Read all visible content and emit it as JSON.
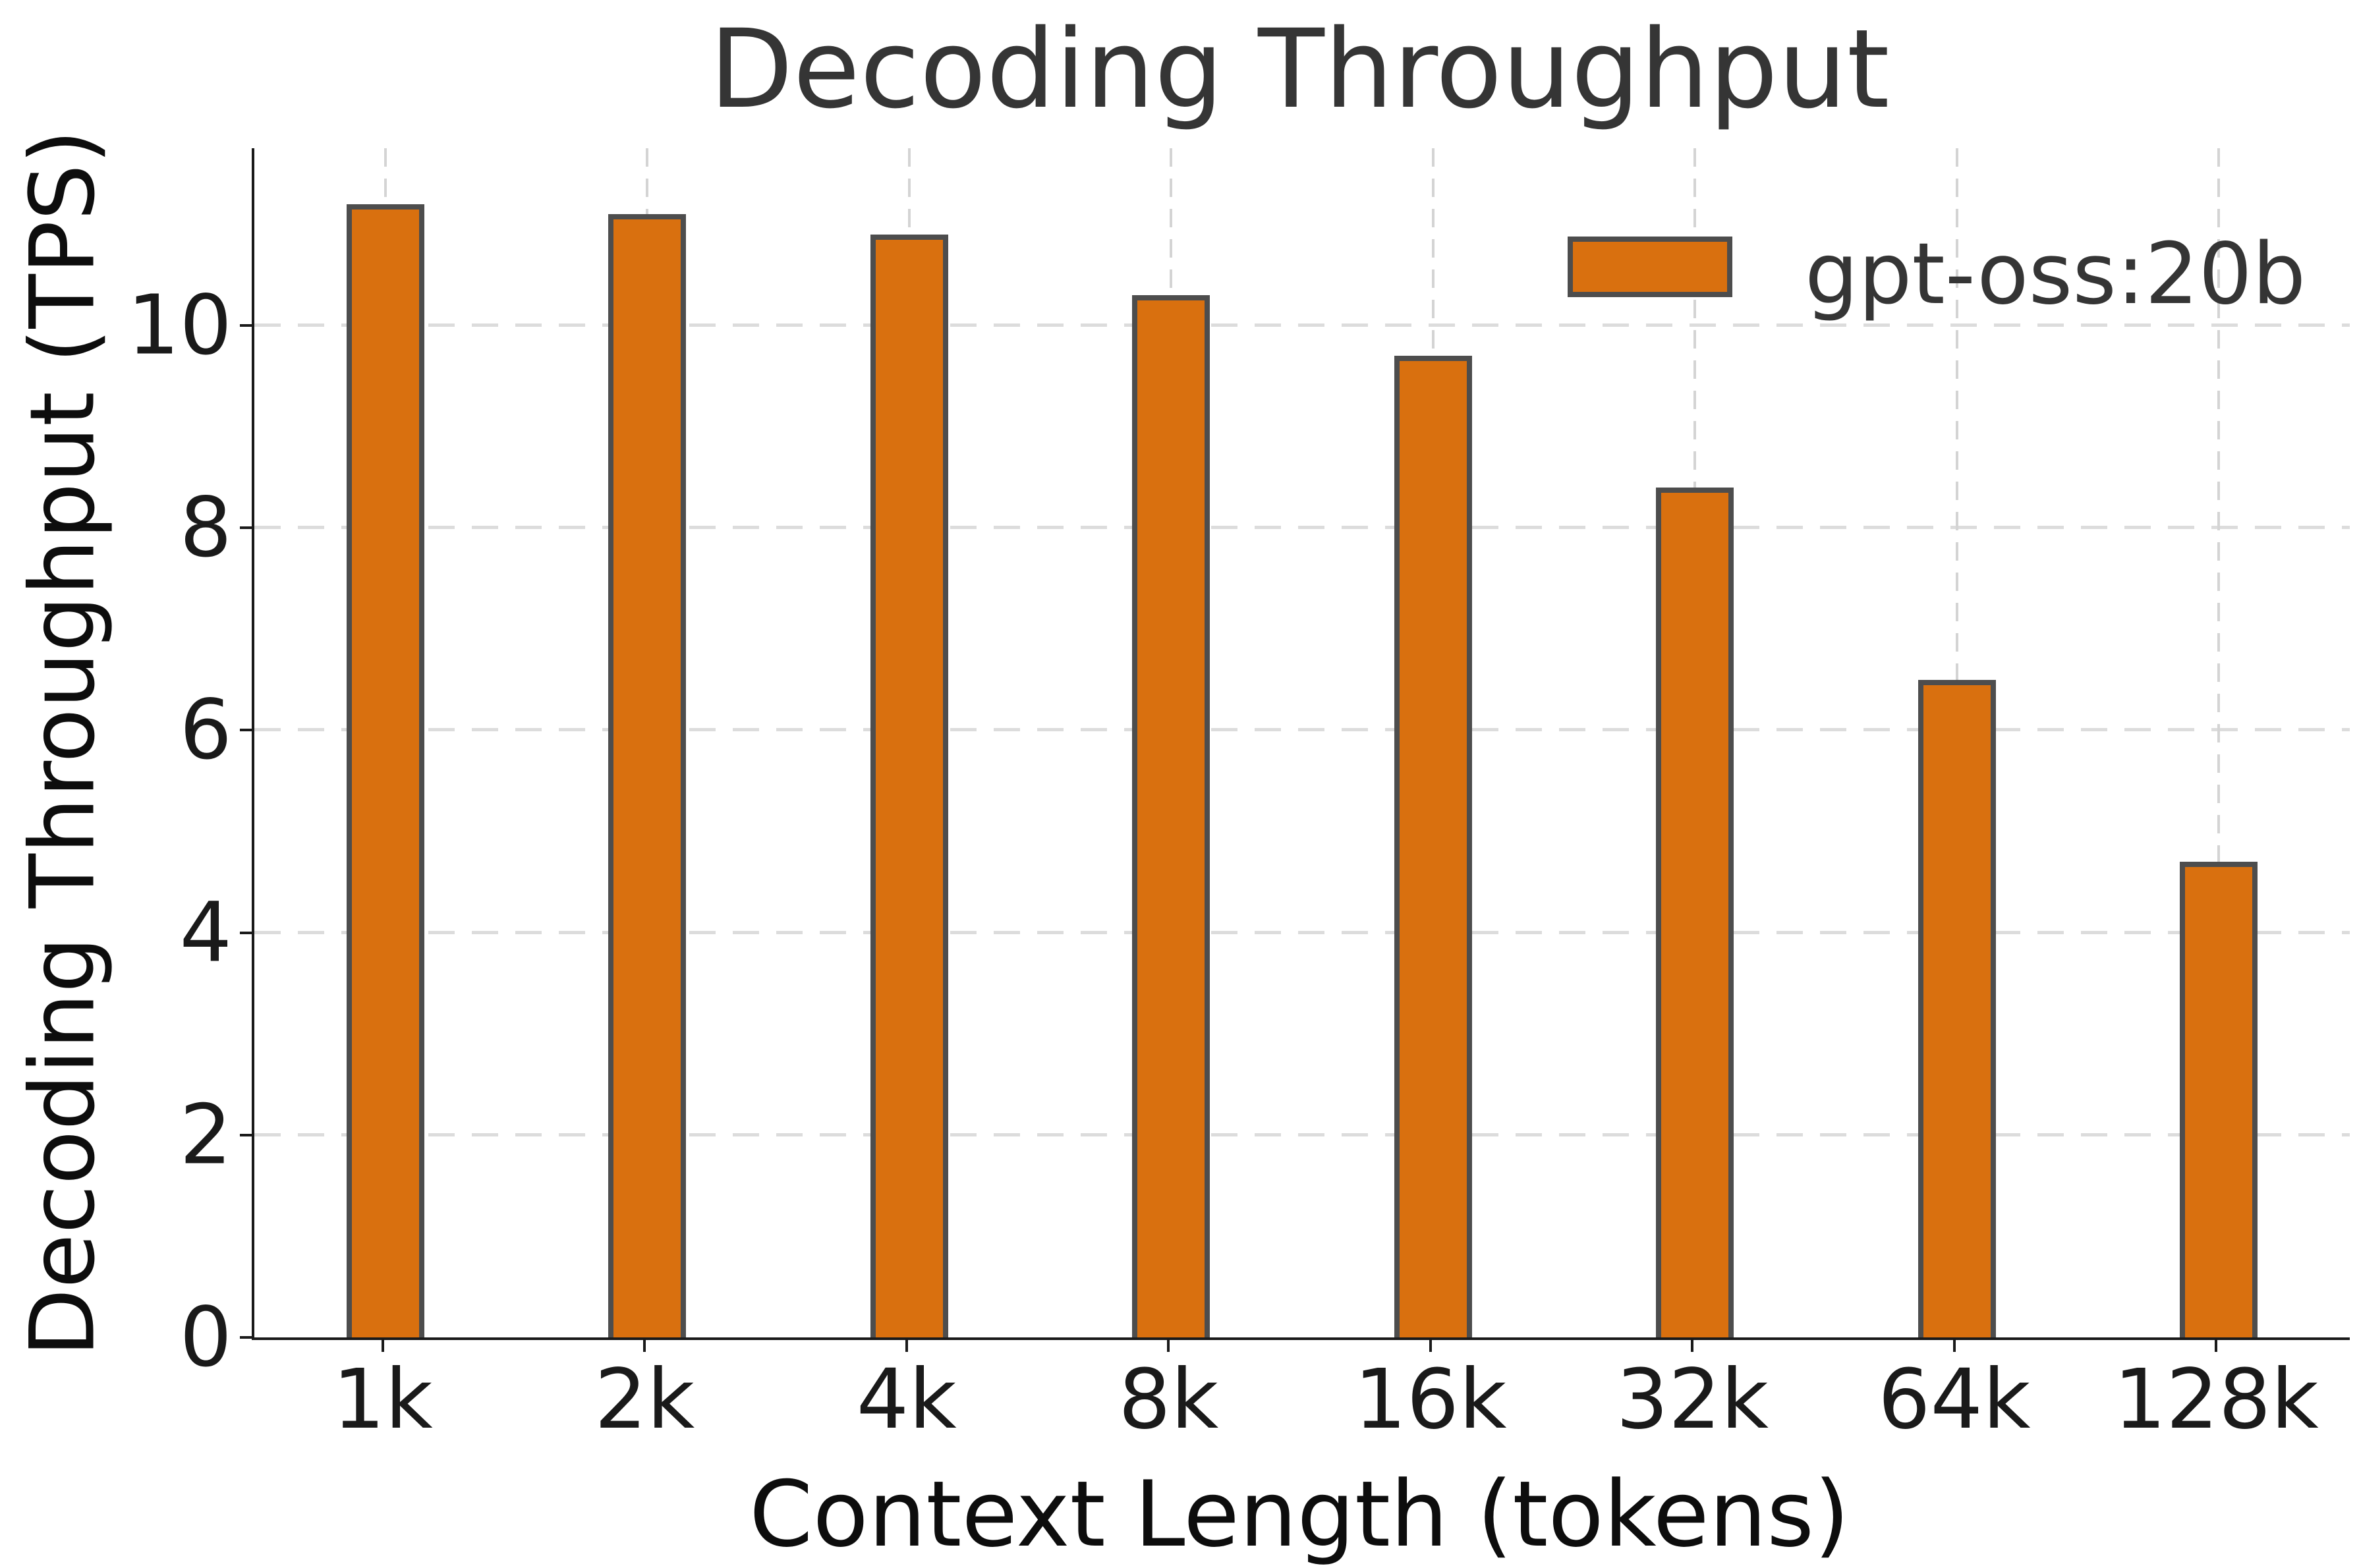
{
  "chart_data": {
    "type": "bar",
    "title": "Decoding Throughput",
    "xlabel": "Context Length (tokens)",
    "ylabel": "Decoding Throughput (TPS)",
    "categories": [
      "1k",
      "2k",
      "4k",
      "8k",
      "16k",
      "32k",
      "64k",
      "128k"
    ],
    "series": [
      {
        "name": "gpt-oss:20b",
        "values": [
          11.2,
          11.1,
          10.9,
          10.3,
          9.7,
          8.4,
          6.5,
          4.7
        ]
      }
    ],
    "yticks": [
      0,
      2,
      4,
      6,
      8,
      10
    ],
    "ylim": [
      0,
      11.75
    ],
    "grid": true,
    "legend_position": "upper right",
    "colors": {
      "bar_fill": "#d9700f",
      "bar_edge": "#4d4d4d",
      "grid": "#d8d8d8",
      "spine": "#1a1a1a",
      "title_text": "#353535",
      "axis_text": "#0d0d0d"
    }
  }
}
